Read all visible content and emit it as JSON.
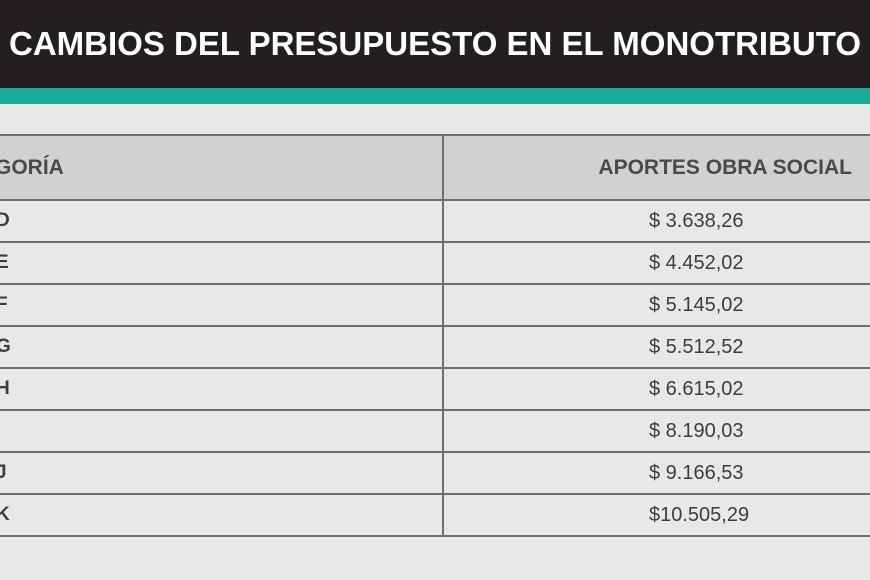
{
  "header": {
    "title": "CAMBIOS DEL PRESUPUESTO EN EL MONOTRIBUTO"
  },
  "colors": {
    "header_bg": "#231f20",
    "accent": "#1aab97",
    "table_head_bg": "#d1d1d0",
    "page_bg": "#e8e8e6"
  },
  "table": {
    "columns": [
      "GORÍA",
      "APORTES OBRA SOCIAL"
    ],
    "rows": [
      {
        "category": "D",
        "value": "$ 3.638,26"
      },
      {
        "category": "E",
        "value": "$ 4.452,02"
      },
      {
        "category": "F",
        "value": "$ 5.145,02"
      },
      {
        "category": "G",
        "value": "$ 5.512,52"
      },
      {
        "category": "H",
        "value": "$ 6.615,02"
      },
      {
        "category": "",
        "value": "$ 8.190,03"
      },
      {
        "category": "J",
        "value": "$ 9.166,53"
      },
      {
        "category": "K",
        "value": "$10.505,29"
      }
    ]
  }
}
